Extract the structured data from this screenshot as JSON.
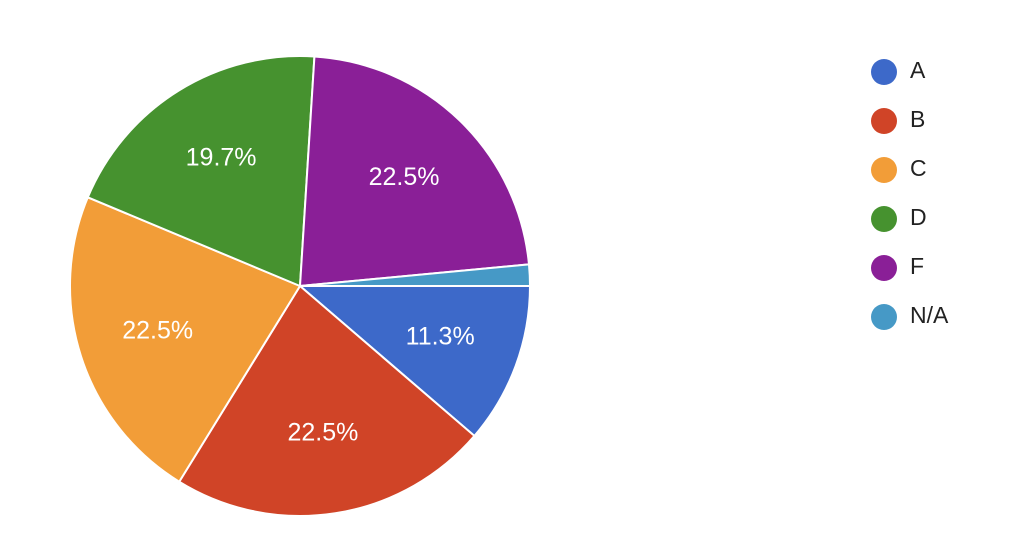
{
  "chart_data": {
    "type": "pie",
    "categories": [
      "A",
      "B",
      "C",
      "D",
      "F",
      "N/A"
    ],
    "values": [
      11.3,
      22.5,
      22.5,
      19.7,
      22.5,
      1.5
    ],
    "value_labels": [
      "11.3%",
      "22.5%",
      "22.5%",
      "19.7%",
      "22.5%",
      null
    ],
    "colors": [
      "#3d69c9",
      "#d04427",
      "#f29d38",
      "#46922f",
      "#8a1f97",
      "#4699c6"
    ],
    "legend": "right"
  }
}
